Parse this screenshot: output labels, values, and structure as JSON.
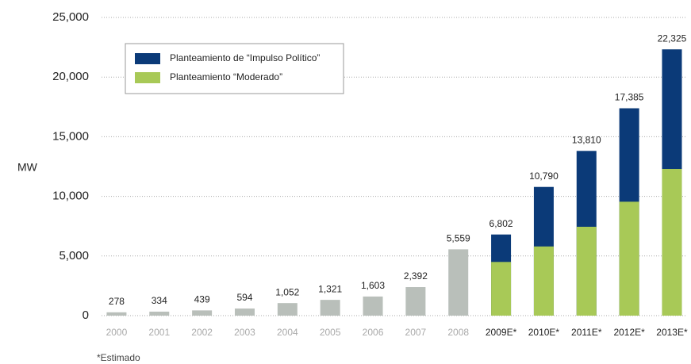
{
  "chart_data": {
    "type": "bar",
    "categories": [
      "2000",
      "2001",
      "2002",
      "2003",
      "2004",
      "2005",
      "2006",
      "2007",
      "2008",
      "2009E*",
      "2010E*",
      "2011E*",
      "2012E*",
      "2013E*"
    ],
    "values": [
      278,
      334,
      439,
      594,
      1052,
      1321,
      1603,
      2392,
      5559,
      null,
      null,
      null,
      null,
      null
    ],
    "value_labels": [
      "278",
      "334",
      "439",
      "594",
      "1,052",
      "1,321",
      "1,603",
      "2,392",
      "5,559",
      null,
      null,
      null,
      null,
      null
    ],
    "color": "#b9bfba",
    "series": [
      {
        "name": "Planteamiento de “Impulso Político”",
        "color": "#0b3a78",
        "values": [
          null,
          null,
          null,
          null,
          null,
          null,
          null,
          null,
          null,
          6802,
          10790,
          13810,
          17385,
          22325
        ],
        "value_labels": [
          null,
          null,
          null,
          null,
          null,
          null,
          null,
          null,
          null,
          "6,802",
          "10,790",
          "13,810",
          "17,385",
          "22,325"
        ]
      },
      {
        "name": "Planteamiento “Moderado”",
        "color": "#a8c957",
        "values": [
          null,
          null,
          null,
          null,
          null,
          null,
          null,
          null,
          null,
          4500,
          5800,
          7450,
          9550,
          12300
        ]
      }
    ],
    "ylabel": "MW",
    "footnote": "*Estimado",
    "ylim": [
      0,
      25000
    ],
    "yticks": [
      0,
      {
        "value": 5000,
        "label": "5,000"
      },
      {
        "value": 10000,
        "label": "10,000"
      },
      {
        "value": 15000,
        "label": "15,000"
      },
      {
        "value": 20000,
        "label": "20,000"
      },
      {
        "value": 25000,
        "label": "25,000"
      }
    ],
    "grid": true,
    "legend": "top-left"
  }
}
